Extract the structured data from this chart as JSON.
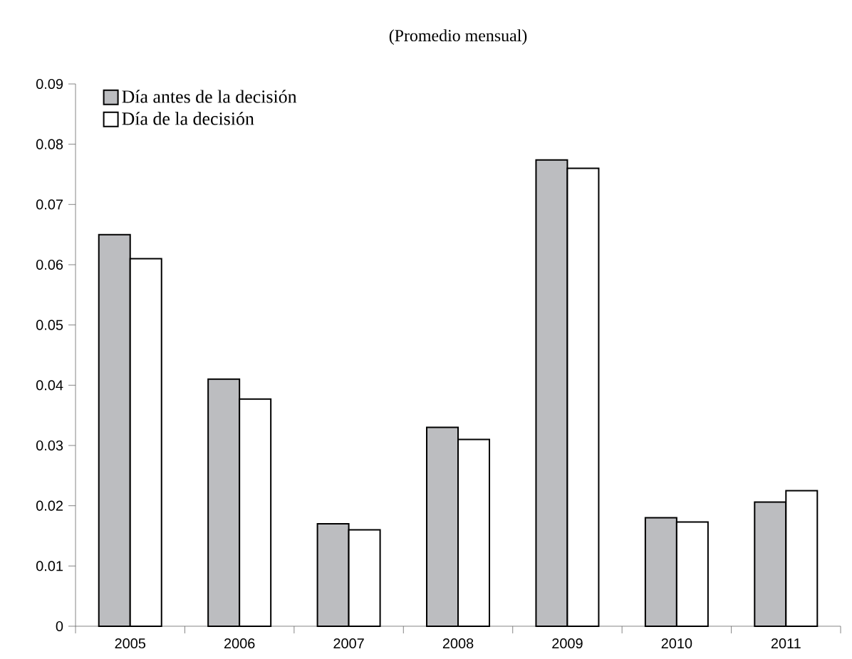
{
  "chart_data": {
    "type": "bar",
    "title": "(Promedio mensual)",
    "categories": [
      "2005",
      "2006",
      "2007",
      "2008",
      "2009",
      "2010",
      "2011"
    ],
    "series": [
      {
        "name": "Día antes de la decisión",
        "color": "#bcbdc0",
        "values": [
          0.065,
          0.041,
          0.017,
          0.033,
          0.0774,
          0.018,
          0.0206
        ]
      },
      {
        "name": "Día de la decisión",
        "color": "#ffffff",
        "values": [
          0.061,
          0.0377,
          0.016,
          0.031,
          0.076,
          0.0173,
          0.0225
        ]
      }
    ],
    "ylim": [
      0,
      0.09
    ],
    "yticks": [
      0,
      0.01,
      0.02,
      0.03,
      0.04,
      0.05,
      0.06,
      0.07,
      0.08,
      0.09
    ],
    "grid": false,
    "legend": "top left"
  }
}
